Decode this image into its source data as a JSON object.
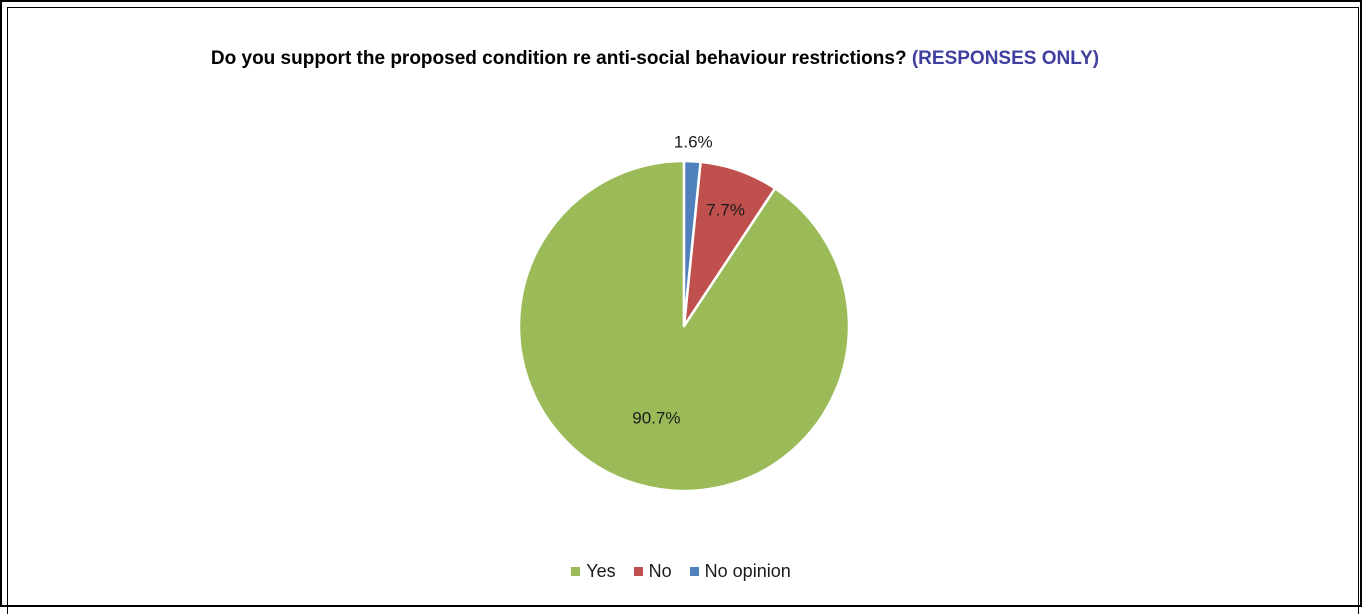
{
  "chart_data": {
    "type": "pie",
    "title": "Do you support the proposed condition re anti-social behaviour restrictions?",
    "title_suffix": "(RESPONSES ONLY)",
    "categories": [
      "Yes",
      "No",
      "No opinion"
    ],
    "values": [
      90.7,
      7.7,
      1.6
    ],
    "labels": [
      "90.7%",
      "7.7%",
      "1.6%"
    ],
    "colors": [
      "#9bbb59",
      "#c0504d",
      "#4f81bd"
    ],
    "title_accent_color": "#3f3f9f",
    "legend_position": "bottom",
    "start_angle_deg": 0,
    "direction": "counterclockwise"
  }
}
